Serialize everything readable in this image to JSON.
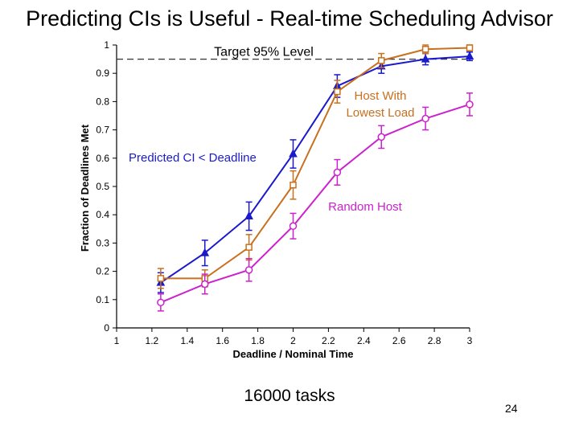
{
  "slide": {
    "title": "Predicting CIs is Useful - Real-time Scheduling Advisor",
    "footer_note": "16000 tasks",
    "page_number": "24"
  },
  "chart_data": {
    "type": "line",
    "xlabel": "Deadline / Nominal Time",
    "ylabel": "Fraction of Deadlines Met",
    "xlim": [
      1,
      3
    ],
    "ylim": [
      0,
      1
    ],
    "x_ticks": [
      1,
      1.2,
      1.4,
      1.6,
      1.8,
      2,
      2.2,
      2.4,
      2.6,
      2.8,
      3
    ],
    "x_tick_labels": [
      "1",
      "1.2",
      "1.4",
      "1.6",
      "1.8",
      "2",
      "2.2",
      "2.4",
      "2.6",
      "2.8",
      "3"
    ],
    "y_ticks": [
      0,
      0.1,
      0.2,
      0.3,
      0.4,
      0.5,
      0.6,
      0.7,
      0.8,
      0.9,
      1
    ],
    "y_tick_labels": [
      "0",
      "0.1",
      "0.2",
      "0.3",
      "0.4",
      "0.5",
      "0.6",
      "0.7",
      "0.8",
      "0.9",
      "1"
    ],
    "grid": false,
    "reference_line": {
      "y": 0.95,
      "label": "Target 95% Level",
      "style": "dashed"
    },
    "series": [
      {
        "name": "Predicted CI < Deadline",
        "color": "#1a1acc",
        "marker": "triangle",
        "x": [
          1.25,
          1.5,
          1.75,
          2,
          2.25,
          2.5,
          2.75,
          3
        ],
        "y": [
          0.16,
          0.265,
          0.395,
          0.615,
          0.855,
          0.925,
          0.95,
          0.96
        ],
        "err": [
          0.035,
          0.045,
          0.05,
          0.05,
          0.04,
          0.025,
          0.02,
          0.015
        ]
      },
      {
        "name": "Host With Lowest Load",
        "color": "#c8701e",
        "marker": "square",
        "x": [
          1.25,
          1.5,
          1.75,
          2,
          2.25,
          2.5,
          2.75,
          3
        ],
        "y": [
          0.175,
          0.175,
          0.285,
          0.505,
          0.835,
          0.945,
          0.985,
          0.99
        ],
        "err": [
          0.035,
          0.03,
          0.045,
          0.05,
          0.04,
          0.025,
          0.015,
          0.01
        ]
      },
      {
        "name": "Random Host",
        "color": "#cc22cc",
        "marker": "circle",
        "x": [
          1.25,
          1.5,
          1.75,
          2,
          2.25,
          2.5,
          2.75,
          3
        ],
        "y": [
          0.09,
          0.155,
          0.205,
          0.36,
          0.55,
          0.675,
          0.74,
          0.79
        ],
        "err": [
          0.03,
          0.035,
          0.04,
          0.045,
          0.045,
          0.04,
          0.04,
          0.04
        ]
      }
    ],
    "annotations": [
      {
        "text": "Host With",
        "color": "#c8701e"
      },
      {
        "text": "Lowest Load",
        "color": "#c8701e"
      },
      {
        "text": "Predicted CI < Deadline",
        "color": "#1a1acc"
      },
      {
        "text": "Random Host",
        "color": "#cc22cc"
      }
    ]
  }
}
